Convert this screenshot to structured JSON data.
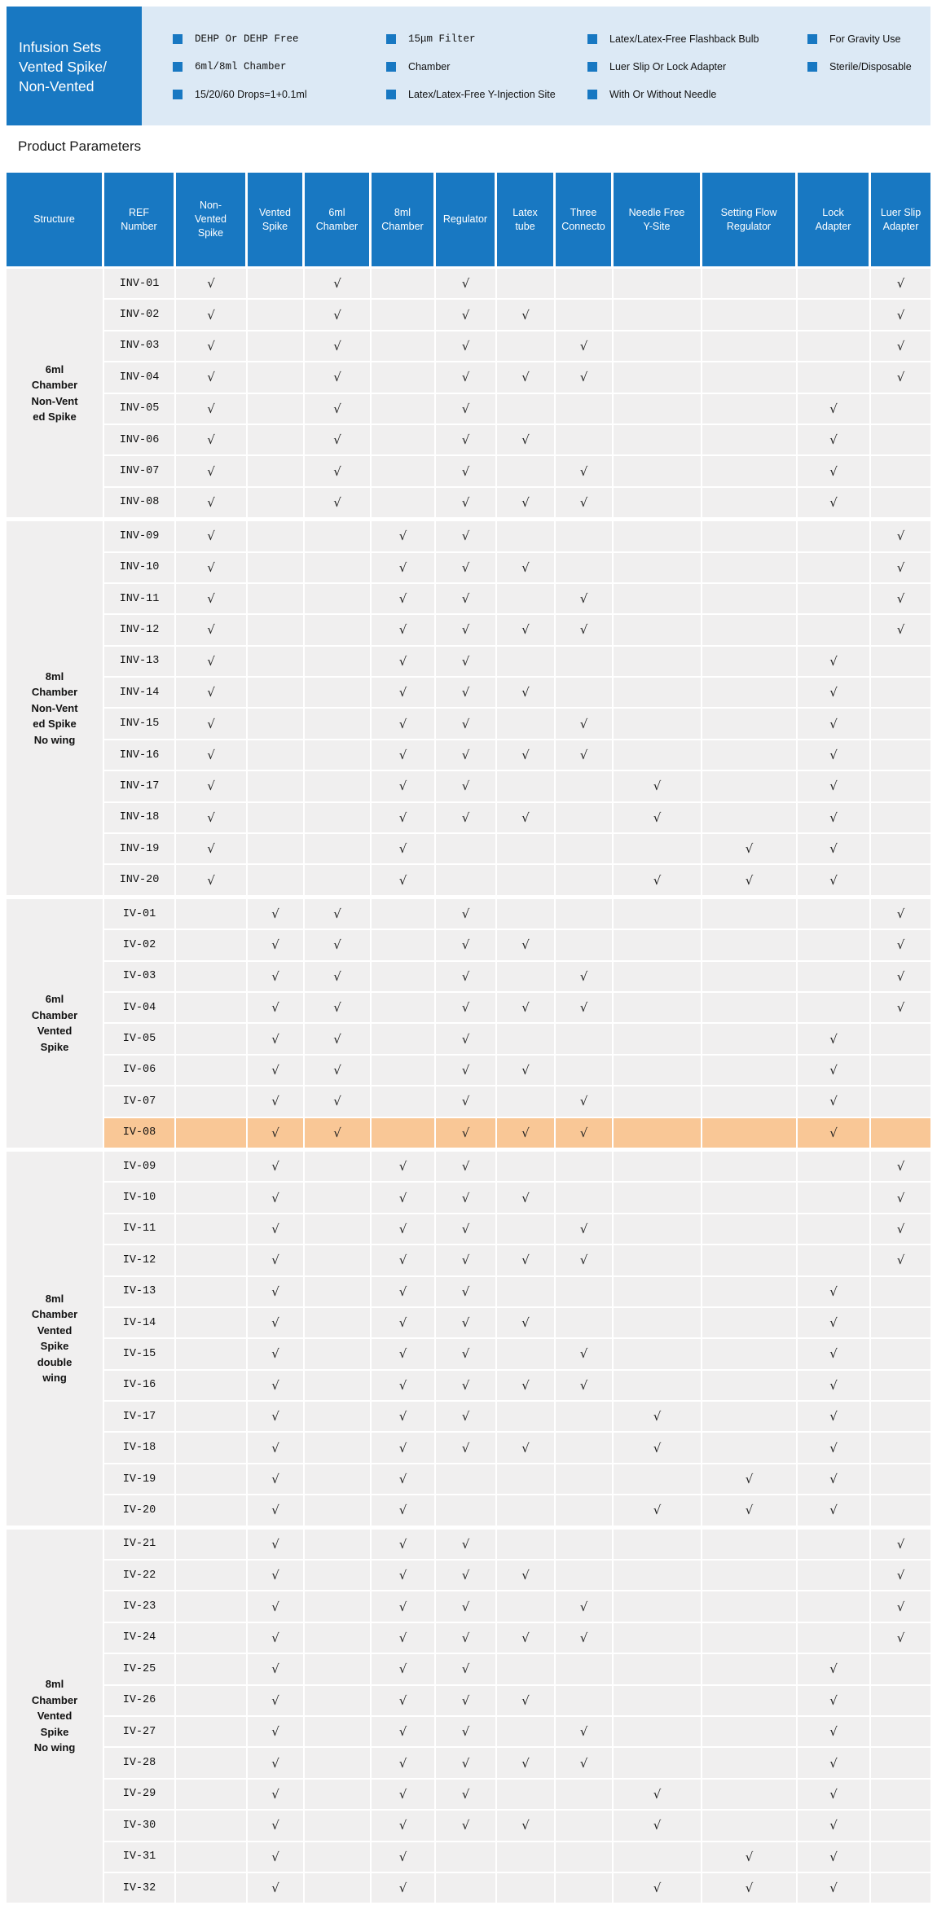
{
  "colors": {
    "brand_blue": "#1878c2",
    "banner_bg": "#dce9f5",
    "row_gray": "#f0efef",
    "highlight_orange": "#f9c796",
    "grid_white": "#ffffff"
  },
  "banner": {
    "title": "Infusion Sets\n Vented Spike/\nNon-Vented",
    "feature_columns": [
      [
        "DEHP Or DEHP Free",
        "6ml/8ml Chamber",
        "15/20/60 Drops=1+0.1ml"
      ],
      [
        "15μm Filter",
        "Chamber",
        "Latex/Latex-Free Y-Injection Site"
      ],
      [
        "Latex/Latex-Free Flashback Bulb",
        "Luer Slip Or Lock Adapter",
        "With Or Without Needle"
      ],
      [
        "For Gravity Use",
        "Sterile/Disposable"
      ]
    ]
  },
  "section_title": "Product Parameters",
  "table": {
    "check_symbol": "√",
    "highlight_ref": "IV-08",
    "columns": [
      "Structure",
      "REF\nNumber",
      "Non-\nVented\nSpike",
      "Vented\nSpike",
      "6ml\nChamber",
      "8ml\nChamber",
      "Regulator",
      "Latex\ntube",
      "Three\nConnecto",
      "Needle Free\nY-Site",
      "Setting Flow\nRegulator",
      "Lock\nAdapter",
      "Luer Slip\nAdapter"
    ],
    "feature_order": [
      "Non-Vented Spike",
      "Vented Spike",
      "6ml Chamber",
      "8ml Chamber",
      "Regulator",
      "Latex tube",
      "Three Connecto",
      "Needle Free Y-Site",
      "Setting Flow Regulator",
      "Lock Adapter",
      "Luer Slip Adapter"
    ],
    "groups": [
      {
        "structure": "6ml\nChamber\nNon-Vent\ned Spike",
        "rows": [
          {
            "ref": "INV-01",
            "checks": [
              1,
              0,
              1,
              0,
              1,
              0,
              0,
              0,
              0,
              0,
              1
            ]
          },
          {
            "ref": "INV-02",
            "checks": [
              1,
              0,
              1,
              0,
              1,
              1,
              0,
              0,
              0,
              0,
              1
            ]
          },
          {
            "ref": "INV-03",
            "checks": [
              1,
              0,
              1,
              0,
              1,
              0,
              1,
              0,
              0,
              0,
              1
            ]
          },
          {
            "ref": "INV-04",
            "checks": [
              1,
              0,
              1,
              0,
              1,
              1,
              1,
              0,
              0,
              0,
              1
            ]
          },
          {
            "ref": "INV-05",
            "checks": [
              1,
              0,
              1,
              0,
              1,
              0,
              0,
              0,
              0,
              1,
              0
            ]
          },
          {
            "ref": "INV-06",
            "checks": [
              1,
              0,
              1,
              0,
              1,
              1,
              0,
              0,
              0,
              1,
              0
            ]
          },
          {
            "ref": "INV-07",
            "checks": [
              1,
              0,
              1,
              0,
              1,
              0,
              1,
              0,
              0,
              1,
              0
            ]
          },
          {
            "ref": "INV-08",
            "checks": [
              1,
              0,
              1,
              0,
              1,
              1,
              1,
              0,
              0,
              1,
              0
            ]
          }
        ]
      },
      {
        "structure": "8ml\nChamber\nNon-Vent\ned Spike\nNo wing",
        "rows": [
          {
            "ref": "INV-09",
            "checks": [
              1,
              0,
              0,
              1,
              1,
              0,
              0,
              0,
              0,
              0,
              1
            ]
          },
          {
            "ref": "INV-10",
            "checks": [
              1,
              0,
              0,
              1,
              1,
              1,
              0,
              0,
              0,
              0,
              1
            ]
          },
          {
            "ref": "INV-11",
            "checks": [
              1,
              0,
              0,
              1,
              1,
              0,
              1,
              0,
              0,
              0,
              1
            ]
          },
          {
            "ref": "INV-12",
            "checks": [
              1,
              0,
              0,
              1,
              1,
              1,
              1,
              0,
              0,
              0,
              1
            ]
          },
          {
            "ref": "INV-13",
            "checks": [
              1,
              0,
              0,
              1,
              1,
              0,
              0,
              0,
              0,
              1,
              0
            ]
          },
          {
            "ref": "INV-14",
            "checks": [
              1,
              0,
              0,
              1,
              1,
              1,
              0,
              0,
              0,
              1,
              0
            ]
          },
          {
            "ref": "INV-15",
            "checks": [
              1,
              0,
              0,
              1,
              1,
              0,
              1,
              0,
              0,
              1,
              0
            ]
          },
          {
            "ref": "INV-16",
            "checks": [
              1,
              0,
              0,
              1,
              1,
              1,
              1,
              0,
              0,
              1,
              0
            ]
          },
          {
            "ref": "INV-17",
            "checks": [
              1,
              0,
              0,
              1,
              1,
              0,
              0,
              1,
              0,
              1,
              0
            ]
          },
          {
            "ref": "INV-18",
            "checks": [
              1,
              0,
              0,
              1,
              1,
              1,
              0,
              1,
              0,
              1,
              0
            ]
          },
          {
            "ref": "INV-19",
            "checks": [
              1,
              0,
              0,
              1,
              0,
              0,
              0,
              0,
              1,
              1,
              0
            ]
          },
          {
            "ref": "INV-20",
            "checks": [
              1,
              0,
              0,
              1,
              0,
              0,
              0,
              1,
              1,
              1,
              0
            ]
          }
        ]
      },
      {
        "structure": "6ml\nChamber\nVented\nSpike",
        "rows": [
          {
            "ref": "IV-01",
            "checks": [
              0,
              1,
              1,
              0,
              1,
              0,
              0,
              0,
              0,
              0,
              1
            ]
          },
          {
            "ref": "IV-02",
            "checks": [
              0,
              1,
              1,
              0,
              1,
              1,
              0,
              0,
              0,
              0,
              1
            ]
          },
          {
            "ref": "IV-03",
            "checks": [
              0,
              1,
              1,
              0,
              1,
              0,
              1,
              0,
              0,
              0,
              1
            ]
          },
          {
            "ref": "IV-04",
            "checks": [
              0,
              1,
              1,
              0,
              1,
              1,
              1,
              0,
              0,
              0,
              1
            ]
          },
          {
            "ref": "IV-05",
            "checks": [
              0,
              1,
              1,
              0,
              1,
              0,
              0,
              0,
              0,
              1,
              0
            ]
          },
          {
            "ref": "IV-06",
            "checks": [
              0,
              1,
              1,
              0,
              1,
              1,
              0,
              0,
              0,
              1,
              0
            ]
          },
          {
            "ref": "IV-07",
            "checks": [
              0,
              1,
              1,
              0,
              1,
              0,
              1,
              0,
              0,
              1,
              0
            ]
          },
          {
            "ref": "IV-08",
            "checks": [
              0,
              1,
              1,
              0,
              1,
              1,
              1,
              0,
              0,
              1,
              0
            ]
          }
        ]
      },
      {
        "structure": "8ml\nChamber\nVented\nSpike\ndouble\nwing",
        "rows": [
          {
            "ref": "IV-09",
            "checks": [
              0,
              1,
              0,
              1,
              1,
              0,
              0,
              0,
              0,
              0,
              1
            ]
          },
          {
            "ref": "IV-10",
            "checks": [
              0,
              1,
              0,
              1,
              1,
              1,
              0,
              0,
              0,
              0,
              1
            ]
          },
          {
            "ref": "IV-11",
            "checks": [
              0,
              1,
              0,
              1,
              1,
              0,
              1,
              0,
              0,
              0,
              1
            ]
          },
          {
            "ref": "IV-12",
            "checks": [
              0,
              1,
              0,
              1,
              1,
              1,
              1,
              0,
              0,
              0,
              1
            ]
          },
          {
            "ref": "IV-13",
            "checks": [
              0,
              1,
              0,
              1,
              1,
              0,
              0,
              0,
              0,
              1,
              0
            ]
          },
          {
            "ref": "IV-14",
            "checks": [
              0,
              1,
              0,
              1,
              1,
              1,
              0,
              0,
              0,
              1,
              0
            ]
          },
          {
            "ref": "IV-15",
            "checks": [
              0,
              1,
              0,
              1,
              1,
              0,
              1,
              0,
              0,
              1,
              0
            ]
          },
          {
            "ref": "IV-16",
            "checks": [
              0,
              1,
              0,
              1,
              1,
              1,
              1,
              0,
              0,
              1,
              0
            ]
          },
          {
            "ref": "IV-17",
            "checks": [
              0,
              1,
              0,
              1,
              1,
              0,
              0,
              1,
              0,
              1,
              0
            ]
          },
          {
            "ref": "IV-18",
            "checks": [
              0,
              1,
              0,
              1,
              1,
              1,
              0,
              1,
              0,
              1,
              0
            ]
          },
          {
            "ref": "IV-19",
            "checks": [
              0,
              1,
              0,
              1,
              0,
              0,
              0,
              0,
              1,
              1,
              0
            ]
          },
          {
            "ref": "IV-20",
            "checks": [
              0,
              1,
              0,
              1,
              0,
              0,
              0,
              1,
              1,
              1,
              0
            ]
          }
        ]
      },
      {
        "structure": "8ml\nChamber\nVented\nSpike\nNo wing",
        "rows": [
          {
            "ref": "IV-21",
            "checks": [
              0,
              1,
              0,
              1,
              1,
              0,
              0,
              0,
              0,
              0,
              1
            ]
          },
          {
            "ref": "IV-22",
            "checks": [
              0,
              1,
              0,
              1,
              1,
              1,
              0,
              0,
              0,
              0,
              1
            ]
          },
          {
            "ref": "IV-23",
            "checks": [
              0,
              1,
              0,
              1,
              1,
              0,
              1,
              0,
              0,
              0,
              1
            ]
          },
          {
            "ref": "IV-24",
            "checks": [
              0,
              1,
              0,
              1,
              1,
              1,
              1,
              0,
              0,
              0,
              1
            ]
          },
          {
            "ref": "IV-25",
            "checks": [
              0,
              1,
              0,
              1,
              1,
              0,
              0,
              0,
              0,
              1,
              0
            ]
          },
          {
            "ref": "IV-26",
            "checks": [
              0,
              1,
              0,
              1,
              1,
              1,
              0,
              0,
              0,
              1,
              0
            ]
          },
          {
            "ref": "IV-27",
            "checks": [
              0,
              1,
              0,
              1,
              1,
              0,
              1,
              0,
              0,
              1,
              0
            ]
          },
          {
            "ref": "IV-28",
            "checks": [
              0,
              1,
              0,
              1,
              1,
              1,
              1,
              0,
              0,
              1,
              0
            ]
          },
          {
            "ref": "IV-29",
            "checks": [
              0,
              1,
              0,
              1,
              1,
              0,
              0,
              1,
              0,
              1,
              0
            ]
          },
          {
            "ref": "IV-30",
            "checks": [
              0,
              1,
              0,
              1,
              1,
              1,
              0,
              1,
              0,
              1,
              0
            ]
          },
          {
            "ref": "IV-31",
            "checks": [
              0,
              1,
              0,
              1,
              0,
              0,
              0,
              0,
              1,
              1,
              0
            ]
          },
          {
            "ref": "IV-32",
            "checks": [
              0,
              1,
              0,
              1,
              0,
              0,
              0,
              1,
              1,
              1,
              0
            ]
          }
        ]
      }
    ]
  }
}
